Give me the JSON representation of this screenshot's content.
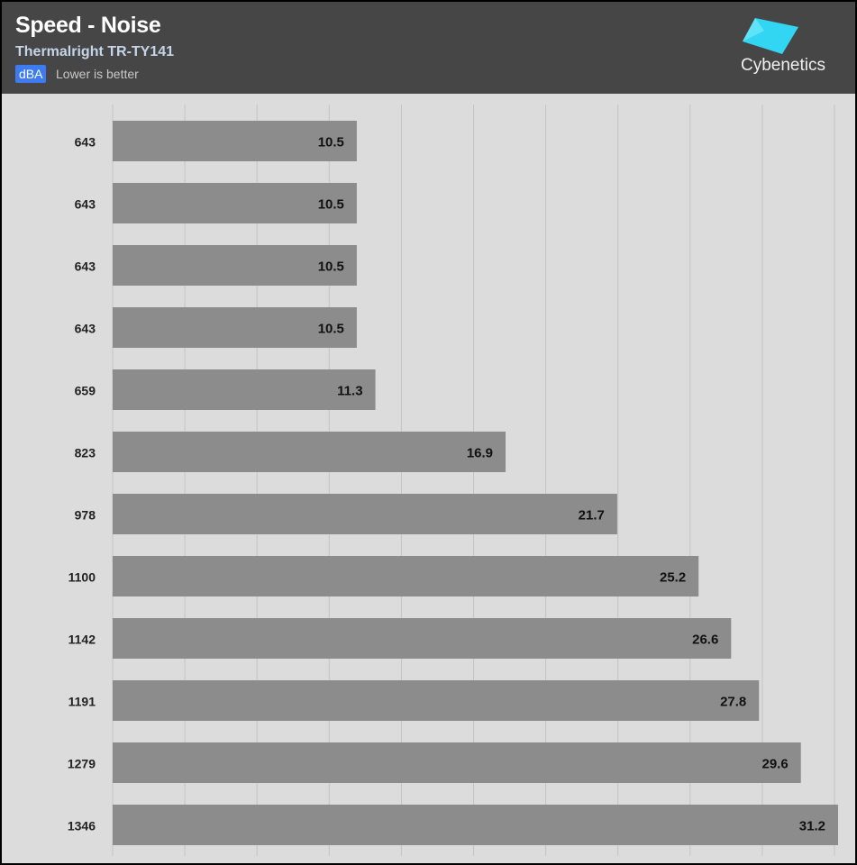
{
  "header": {
    "title": "Speed - Noise",
    "subtitle": "Thermalright TR-TY141",
    "unit": "dBA",
    "note": "Lower is better",
    "brand": "Cybenetics",
    "logo_icon": "cybenetics-logo-icon"
  },
  "colors": {
    "header_bg": "#464646",
    "plot_bg": "#dcdcdc",
    "bar": "#8c8c8c",
    "badge": "#3d7bf2",
    "logo_cyan": "#33d6f2"
  },
  "chart_data": {
    "type": "bar",
    "orientation": "horizontal",
    "title": "Speed - Noise",
    "subtitle": "Thermalright TR-TY141",
    "unit": "dBA",
    "categories": [
      "643",
      "643",
      "643",
      "643",
      "659",
      "823",
      "978",
      "1100",
      "1142",
      "1191",
      "1279",
      "1346"
    ],
    "values": [
      10.5,
      10.5,
      10.5,
      10.5,
      11.3,
      16.9,
      21.7,
      25.2,
      26.6,
      27.8,
      29.6,
      31.2
    ],
    "xlim": [
      0,
      31.2
    ],
    "grid": true,
    "value_labels": true
  }
}
